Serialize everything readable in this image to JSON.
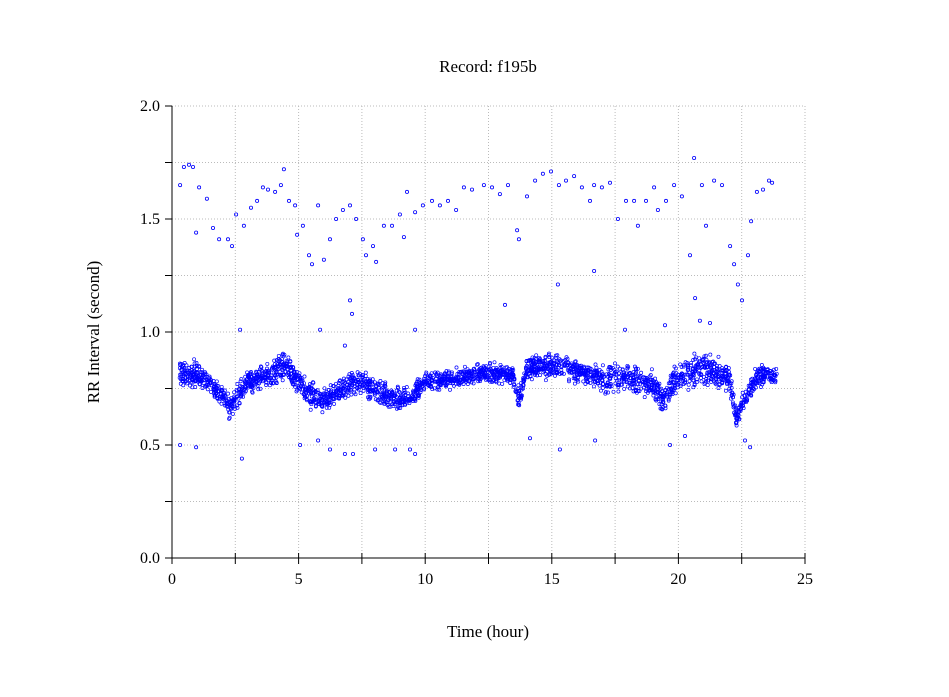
{
  "chart_data": {
    "type": "scatter",
    "title": "Record:  f195b",
    "xlabel": "Time (hour)",
    "ylabel": "RR Interval (second)",
    "xlim": [
      0,
      25
    ],
    "ylim": [
      0,
      2.0
    ],
    "xticks": [
      "0",
      "5",
      "10",
      "15",
      "20",
      "25"
    ],
    "xtick_values": [
      0,
      5,
      10,
      15,
      20,
      25
    ],
    "yticks": [
      "0.0",
      "0.5",
      "1.0",
      "1.5",
      "2.0"
    ],
    "ytick_values": [
      0,
      0.5,
      1.0,
      1.5,
      2.0
    ],
    "minor_x_step": 2.5,
    "minor_y_step": 0.25,
    "grid": true,
    "marker_color": "#0000ff",
    "main_band": [
      {
        "x": 0.3,
        "center": 0.82,
        "spread": 0.06
      },
      {
        "x": 1.0,
        "center": 0.81,
        "spread": 0.06
      },
      {
        "x": 1.5,
        "center": 0.77,
        "spread": 0.05
      },
      {
        "x": 2.0,
        "center": 0.71,
        "spread": 0.05
      },
      {
        "x": 2.3,
        "center": 0.66,
        "spread": 0.05
      },
      {
        "x": 2.7,
        "center": 0.74,
        "spread": 0.05
      },
      {
        "x": 3.0,
        "center": 0.78,
        "spread": 0.05
      },
      {
        "x": 3.5,
        "center": 0.8,
        "spread": 0.05
      },
      {
        "x": 4.0,
        "center": 0.81,
        "spread": 0.06
      },
      {
        "x": 4.5,
        "center": 0.86,
        "spread": 0.06
      },
      {
        "x": 5.0,
        "center": 0.77,
        "spread": 0.06
      },
      {
        "x": 5.5,
        "center": 0.72,
        "spread": 0.06
      },
      {
        "x": 6.0,
        "center": 0.7,
        "spread": 0.05
      },
      {
        "x": 6.5,
        "center": 0.72,
        "spread": 0.05
      },
      {
        "x": 7.0,
        "center": 0.77,
        "spread": 0.05
      },
      {
        "x": 7.5,
        "center": 0.78,
        "spread": 0.05
      },
      {
        "x": 8.0,
        "center": 0.74,
        "spread": 0.06
      },
      {
        "x": 8.5,
        "center": 0.71,
        "spread": 0.05
      },
      {
        "x": 9.0,
        "center": 0.7,
        "spread": 0.05
      },
      {
        "x": 9.5,
        "center": 0.72,
        "spread": 0.05
      },
      {
        "x": 10.0,
        "center": 0.78,
        "spread": 0.04
      },
      {
        "x": 11.0,
        "center": 0.79,
        "spread": 0.04
      },
      {
        "x": 12.0,
        "center": 0.81,
        "spread": 0.04
      },
      {
        "x": 13.0,
        "center": 0.82,
        "spread": 0.04
      },
      {
        "x": 13.5,
        "center": 0.8,
        "spread": 0.04
      },
      {
        "x": 13.7,
        "center": 0.7,
        "spread": 0.05
      },
      {
        "x": 14.0,
        "center": 0.84,
        "spread": 0.05
      },
      {
        "x": 15.0,
        "center": 0.85,
        "spread": 0.05
      },
      {
        "x": 16.0,
        "center": 0.83,
        "spread": 0.05
      },
      {
        "x": 17.0,
        "center": 0.79,
        "spread": 0.06
      },
      {
        "x": 18.0,
        "center": 0.8,
        "spread": 0.06
      },
      {
        "x": 19.0,
        "center": 0.77,
        "spread": 0.06
      },
      {
        "x": 19.4,
        "center": 0.7,
        "spread": 0.06
      },
      {
        "x": 20.0,
        "center": 0.81,
        "spread": 0.06
      },
      {
        "x": 21.0,
        "center": 0.84,
        "spread": 0.07
      },
      {
        "x": 22.0,
        "center": 0.8,
        "spread": 0.06
      },
      {
        "x": 22.3,
        "center": 0.62,
        "spread": 0.05
      },
      {
        "x": 22.6,
        "center": 0.7,
        "spread": 0.05
      },
      {
        "x": 23.0,
        "center": 0.78,
        "spread": 0.05
      },
      {
        "x": 23.5,
        "center": 0.82,
        "spread": 0.04
      },
      {
        "x": 23.9,
        "center": 0.8,
        "spread": 0.04
      }
    ],
    "points": [
      [
        0.32,
        1.65
      ],
      [
        0.47,
        1.73
      ],
      [
        0.67,
        1.74
      ],
      [
        0.83,
        1.73
      ],
      [
        0.95,
        1.44
      ],
      [
        1.07,
        1.64
      ],
      [
        1.38,
        1.59
      ],
      [
        1.62,
        1.46
      ],
      [
        1.86,
        1.41
      ],
      [
        2.21,
        1.41
      ],
      [
        2.37,
        1.38
      ],
      [
        2.53,
        1.52
      ],
      [
        2.84,
        1.47
      ],
      [
        3.12,
        1.55
      ],
      [
        3.36,
        1.58
      ],
      [
        3.59,
        1.64
      ],
      [
        3.79,
        1.63
      ],
      [
        4.07,
        1.62
      ],
      [
        4.3,
        1.65
      ],
      [
        4.42,
        1.72
      ],
      [
        4.62,
        1.58
      ],
      [
        4.86,
        1.56
      ],
      [
        4.94,
        1.43
      ],
      [
        5.17,
        1.47
      ],
      [
        5.41,
        1.34
      ],
      [
        5.53,
        1.3
      ],
      [
        5.77,
        1.56
      ],
      [
        6.0,
        1.32
      ],
      [
        6.24,
        1.41
      ],
      [
        6.48,
        1.5
      ],
      [
        6.75,
        1.54
      ],
      [
        7.03,
        1.56
      ],
      [
        7.27,
        1.5
      ],
      [
        7.54,
        1.41
      ],
      [
        7.66,
        1.34
      ],
      [
        7.94,
        1.38
      ],
      [
        8.06,
        1.31
      ],
      [
        8.37,
        1.47
      ],
      [
        8.69,
        1.47
      ],
      [
        9.0,
        1.52
      ],
      [
        9.16,
        1.42
      ],
      [
        9.28,
        1.62
      ],
      [
        9.6,
        1.53
      ],
      [
        9.91,
        1.56
      ],
      [
        10.27,
        1.58
      ],
      [
        10.58,
        1.56
      ],
      [
        10.9,
        1.58
      ],
      [
        11.22,
        1.54
      ],
      [
        11.53,
        1.64
      ],
      [
        11.85,
        1.63
      ],
      [
        12.32,
        1.65
      ],
      [
        12.64,
        1.64
      ],
      [
        12.95,
        1.61
      ],
      [
        13.27,
        1.65
      ],
      [
        13.63,
        1.45
      ],
      [
        13.7,
        1.41
      ],
      [
        14.02,
        1.6
      ],
      [
        14.34,
        1.67
      ],
      [
        14.65,
        1.7
      ],
      [
        14.97,
        1.71
      ],
      [
        15.28,
        1.65
      ],
      [
        15.56,
        1.67
      ],
      [
        15.88,
        1.69
      ],
      [
        16.19,
        1.64
      ],
      [
        16.51,
        1.58
      ],
      [
        16.67,
        1.65
      ],
      [
        16.98,
        1.64
      ],
      [
        17.3,
        1.66
      ],
      [
        17.61,
        1.5
      ],
      [
        17.93,
        1.58
      ],
      [
        18.25,
        1.58
      ],
      [
        18.4,
        1.47
      ],
      [
        18.72,
        1.58
      ],
      [
        19.04,
        1.64
      ],
      [
        19.19,
        1.54
      ],
      [
        19.51,
        1.58
      ],
      [
        19.83,
        1.65
      ],
      [
        20.14,
        1.6
      ],
      [
        20.46,
        1.34
      ],
      [
        20.62,
        1.77
      ],
      [
        20.93,
        1.65
      ],
      [
        21.09,
        1.47
      ],
      [
        21.41,
        1.67
      ],
      [
        21.72,
        1.65
      ],
      [
        22.04,
        1.38
      ],
      [
        22.2,
        1.3
      ],
      [
        22.35,
        1.21
      ],
      [
        22.51,
        1.14
      ],
      [
        22.75,
        1.34
      ],
      [
        22.87,
        1.49
      ],
      [
        23.1,
        1.62
      ],
      [
        23.34,
        1.63
      ],
      [
        23.58,
        1.67
      ],
      [
        23.7,
        1.66
      ],
      [
        2.69,
        1.01
      ],
      [
        5.85,
        1.01
      ],
      [
        7.03,
        1.14
      ],
      [
        7.11,
        1.08
      ],
      [
        6.83,
        0.94
      ],
      [
        9.6,
        1.01
      ],
      [
        20.85,
        1.05
      ],
      [
        19.47,
        1.03
      ],
      [
        13.15,
        1.12
      ],
      [
        15.24,
        1.21
      ],
      [
        16.67,
        1.27
      ],
      [
        17.89,
        1.01
      ],
      [
        21.25,
        1.04
      ],
      [
        20.66,
        1.15
      ],
      [
        0.32,
        0.5
      ],
      [
        0.95,
        0.49
      ],
      [
        2.76,
        0.44
      ],
      [
        5.06,
        0.5
      ],
      [
        5.77,
        0.52
      ],
      [
        6.24,
        0.48
      ],
      [
        6.83,
        0.46
      ],
      [
        7.15,
        0.46
      ],
      [
        8.02,
        0.48
      ],
      [
        8.81,
        0.48
      ],
      [
        9.4,
        0.48
      ],
      [
        9.6,
        0.46
      ],
      [
        14.14,
        0.53
      ],
      [
        15.32,
        0.48
      ],
      [
        16.71,
        0.52
      ],
      [
        19.67,
        0.5
      ],
      [
        20.26,
        0.54
      ],
      [
        22.83,
        0.49
      ],
      [
        22.63,
        0.52
      ]
    ]
  }
}
